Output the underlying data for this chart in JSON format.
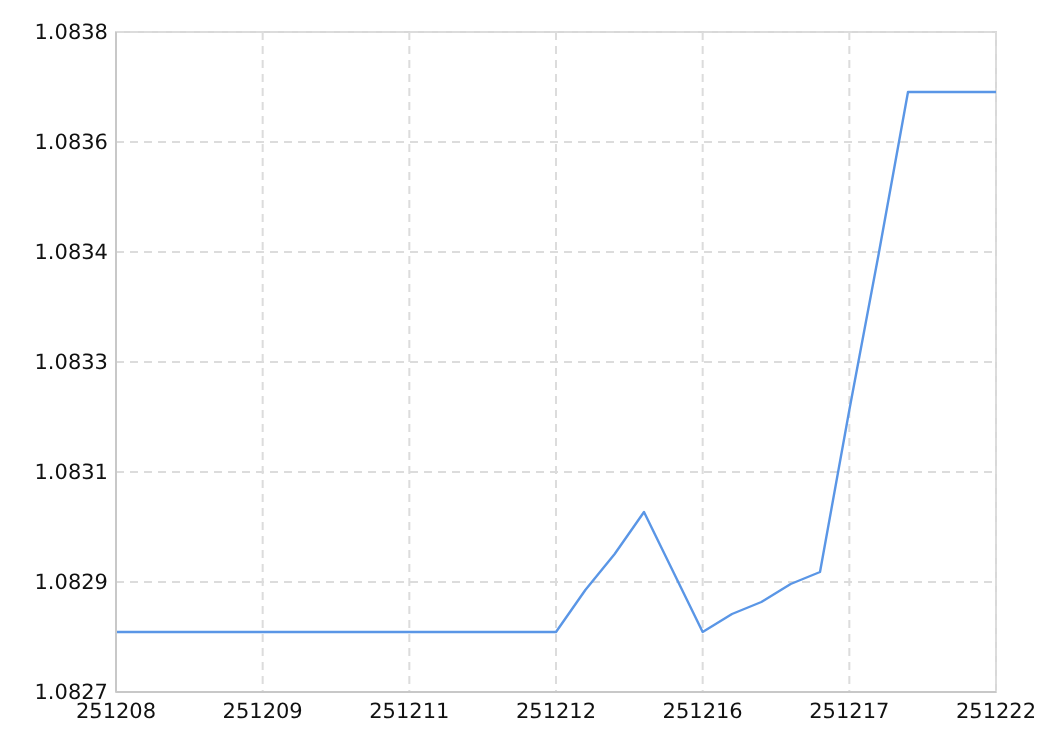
{
  "chart_data": {
    "type": "line",
    "categories": [
      "251208",
      null,
      null,
      null,
      null,
      "251209",
      null,
      null,
      null,
      null,
      "251211",
      null,
      null,
      null,
      null,
      "251212",
      null,
      null,
      null,
      null,
      "251216",
      null,
      null,
      null,
      null,
      "251217",
      null,
      null,
      null,
      null,
      "251222"
    ],
    "series": [
      {
        "color": "#5a96e6",
        "values": [
          1.0828,
          1.0828,
          1.0828,
          1.0828,
          1.0828,
          1.0828,
          1.0828,
          1.0828,
          1.0828,
          1.0828,
          1.0828,
          1.0828,
          1.0828,
          1.0828,
          1.0828,
          1.0828,
          1.08287,
          1.08293,
          1.083,
          1.0829,
          1.0828,
          1.08283,
          1.08285,
          1.08288,
          1.0829,
          1.08317,
          1.08343,
          1.0837,
          1.0837,
          1.0837,
          1.0837
        ]
      }
    ],
    "ylim": [
      1.0827,
      1.0838
    ],
    "yticks": [
      {
        "value": 1.0827,
        "label": "1.0827"
      },
      {
        "value": 1.08288333,
        "label": "1.0829"
      },
      {
        "value": 1.08306667,
        "label": "1.0831"
      },
      {
        "value": 1.08325,
        "label": "1.0833"
      },
      {
        "value": 1.08343333,
        "label": "1.0834"
      },
      {
        "value": 1.08361667,
        "label": "1.0836"
      },
      {
        "value": 1.0838,
        "label": "1.0838"
      }
    ],
    "grid": true,
    "marker": "none",
    "line_style": "solid"
  }
}
